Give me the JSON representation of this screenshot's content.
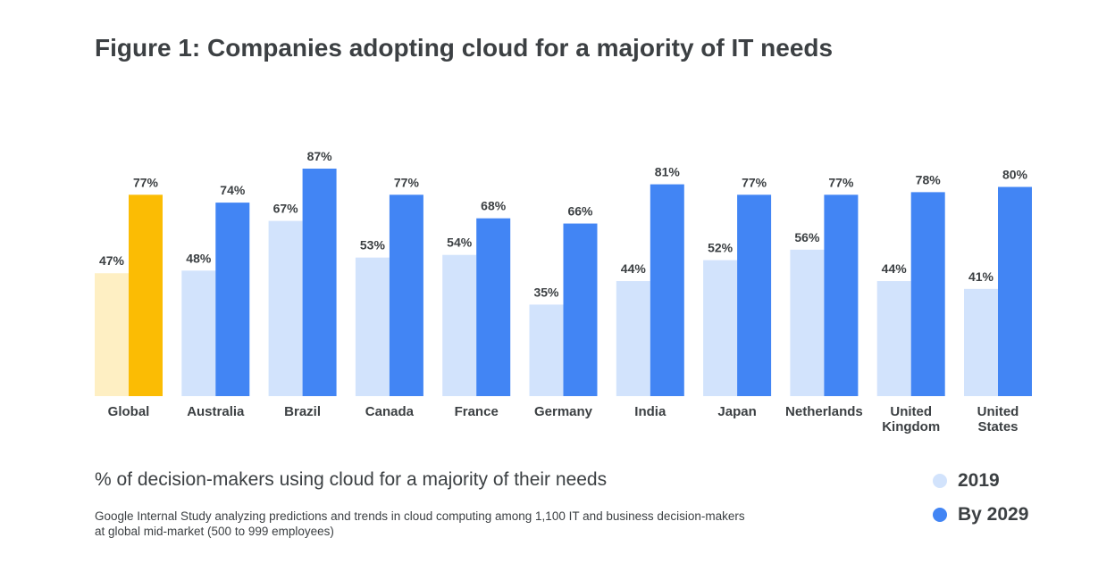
{
  "title": "Figure 1: Companies adopting cloud for a majority of IT needs",
  "caption": "% of decision-makers using cloud for a majority of their needs",
  "source_line_1": "Google Internal Study analyzing predictions and trends in cloud computing among 1,100 IT and business decision-makers",
  "source_line_2": "at global mid-market (500 to 999 employees)",
  "legend": [
    {
      "label": "2019",
      "color": "#d2e3fc"
    },
    {
      "label": "By 2029",
      "color": "#4285f4"
    }
  ],
  "colors": {
    "series_2019": "#d2e3fc",
    "series_2029": "#4285f4",
    "global_2019": "#feefc3",
    "global_2029": "#fbbc04"
  },
  "chart_data": {
    "type": "bar",
    "title": "Figure 1: Companies adopting cloud for a majority of IT needs",
    "categories": [
      [
        "Global"
      ],
      [
        "Australia"
      ],
      [
        "Brazil"
      ],
      [
        "Canada"
      ],
      [
        "France"
      ],
      [
        "Germany"
      ],
      [
        "India"
      ],
      [
        "Japan"
      ],
      [
        "Netherlands"
      ],
      [
        "United",
        "Kingdom"
      ],
      [
        "United",
        "States"
      ]
    ],
    "series": [
      {
        "name": "2019",
        "values": [
          47,
          48,
          67,
          53,
          54,
          35,
          44,
          52,
          56,
          44,
          41
        ],
        "labels": [
          "47%",
          "48%",
          "67%",
          "53%",
          "54%",
          "35%",
          "44%",
          "52%",
          "56%",
          "44%",
          "41%"
        ]
      },
      {
        "name": "By 2029",
        "values": [
          77,
          74,
          87,
          77,
          68,
          66,
          81,
          77,
          77,
          78,
          80
        ],
        "labels": [
          "77%",
          "74%",
          "87%",
          "77%",
          "68%",
          "66%",
          "81%",
          "77%",
          "77%",
          "78%",
          "80%"
        ]
      }
    ],
    "highlight_category": "Global",
    "ylim": [
      0,
      100
    ],
    "grid": false,
    "legend_position": "bottom-right"
  }
}
